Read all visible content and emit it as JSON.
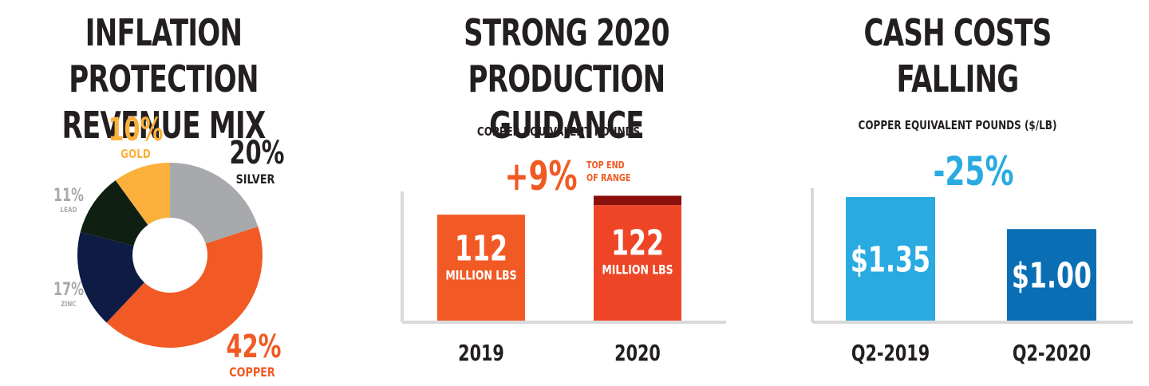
{
  "panels": {
    "revenue": {
      "title_line1": "INFLATION PROTECTION",
      "title_line2": "REVENUE MIX"
    },
    "production": {
      "title_line1": "STRONG 2020",
      "title_line2": "PRODUCTION GUIDANCE",
      "subtitle": "COPPER EQUIVALENT POUNDS",
      "change": "+9%",
      "change_note_line1": "TOP END",
      "change_note_line2": "OF RANGE"
    },
    "costs": {
      "title_line1": "CASH COSTS",
      "title_line2": "FALLING",
      "subtitle": "COPPER EQUIVALENT POUNDS ($/LB)",
      "change": "-25%"
    }
  },
  "colors": {
    "silver": "#a7a9ac",
    "copper": "#f15a24",
    "zinc": "#0d1b45",
    "lead": "#0f1f12",
    "gold": "#fbb03b",
    "bar_2019": "#f15a24",
    "bar_2020": "#ee4527",
    "bar_2020_top": "#8b0f0b",
    "bar_q2_2019": "#29abe2",
    "bar_q2_2020": "#0a6eb4",
    "change_orange": "#f15a24",
    "change_blue": "#29abe2"
  },
  "chart_data": [
    {
      "type": "pie",
      "title": "INFLATION PROTECTION REVENUE MIX",
      "slices": [
        {
          "name": "SILVER",
          "value": 20,
          "label": "20%"
        },
        {
          "name": "COPPER",
          "value": 42,
          "label": "42%"
        },
        {
          "name": "ZINC",
          "value": 17,
          "label": "17%"
        },
        {
          "name": "LEAD",
          "value": 11,
          "label": "11%"
        },
        {
          "name": "GOLD",
          "value": 10,
          "label": "10%"
        }
      ]
    },
    {
      "type": "bar",
      "title": "STRONG 2020 PRODUCTION GUIDANCE",
      "ylabel": "COPPER EQUIVALENT POUNDS",
      "categories": [
        "2019",
        "2020"
      ],
      "values": [
        112,
        122
      ],
      "bar_labels": [
        "112",
        "122"
      ],
      "bar_sublabels": [
        "MILLION LBS",
        "MILLION LBS"
      ],
      "top_end_value": 132,
      "ylim": [
        0,
        140
      ]
    },
    {
      "type": "bar",
      "title": "CASH COSTS FALLING",
      "ylabel": "COPPER EQUIVALENT POUNDS ($/LB)",
      "categories": [
        "Q2-2019",
        "Q2-2020"
      ],
      "values": [
        1.35,
        1.0
      ],
      "bar_labels": [
        "$1.35",
        "$1.00"
      ],
      "ylim": [
        0,
        1.6
      ]
    }
  ]
}
